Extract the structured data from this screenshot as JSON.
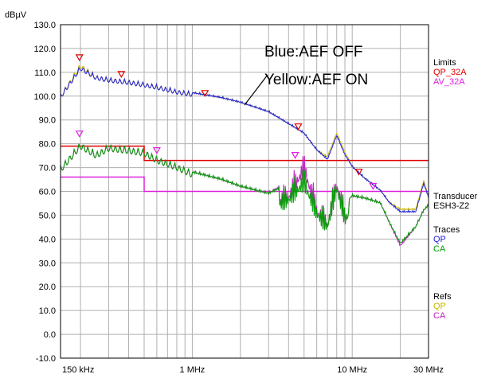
{
  "chart_data": {
    "type": "line",
    "ylabel": "dBµV",
    "ylim": [
      -10,
      130
    ],
    "y_ticks": [
      "130.0",
      "120.0",
      "110.0",
      "100.0",
      "90.0",
      "80.0",
      "70.0",
      "60.0",
      "50.0",
      "40.0",
      "30.0",
      "20.0",
      "10.0",
      "0.0",
      "-10.0"
    ],
    "x_scale": "log",
    "xlim_mhz": [
      0.15,
      30
    ],
    "x_ticks": [
      {
        "label": "150 kHz",
        "mhz": 0.15
      },
      {
        "label": "1 MHz",
        "mhz": 1
      },
      {
        "label": "10 MHz",
        "mhz": 10
      },
      {
        "label": "30 MHz",
        "mhz": 30
      }
    ],
    "grid": true,
    "annotations": [
      "Blue:AEF OFF",
      "Yellow:AEF ON"
    ],
    "legend": {
      "limits_title": "Limits",
      "limits": [
        {
          "name": "QP_32A",
          "color": "#e00000"
        },
        {
          "name": "AV_32A",
          "color": "#e020e0"
        }
      ],
      "transducer_title": "Transducer",
      "transducer": "ESH3-Z2",
      "traces_title": "Traces",
      "traces": [
        {
          "name": "QP",
          "color": "#2020e0"
        },
        {
          "name": "CA",
          "color": "#00a000"
        }
      ],
      "refs_title": "Refs",
      "refs": [
        {
          "name": "QP",
          "color": "#c8b400"
        },
        {
          "name": "CA",
          "color": "#c020c0"
        }
      ]
    },
    "limit_lines": [
      {
        "name": "QP_32A",
        "color": "#e00000",
        "points": [
          [
            0.15,
            79
          ],
          [
            0.5,
            79
          ],
          [
            0.5,
            73
          ],
          [
            30,
            73
          ]
        ]
      },
      {
        "name": "AV_32A",
        "color": "#e020e0",
        "points": [
          [
            0.15,
            66
          ],
          [
            0.5,
            66
          ],
          [
            0.5,
            60
          ],
          [
            30,
            60
          ]
        ]
      }
    ],
    "series": [
      {
        "name": "QP",
        "color": "#2020e0",
        "envelope": [
          [
            0.15,
            100
          ],
          [
            0.2,
            112
          ],
          [
            0.25,
            108
          ],
          [
            0.3,
            107
          ],
          [
            0.4,
            106
          ],
          [
            0.5,
            105
          ],
          [
            0.6,
            104
          ],
          [
            0.8,
            102
          ],
          [
            1,
            101
          ],
          [
            1.5,
            99
          ],
          [
            2,
            97
          ],
          [
            3,
            93
          ],
          [
            4,
            88
          ],
          [
            5,
            84
          ],
          [
            6,
            77
          ],
          [
            7,
            73
          ],
          [
            8,
            83
          ],
          [
            9,
            75
          ],
          [
            10,
            70
          ],
          [
            12,
            65
          ],
          [
            15,
            60
          ],
          [
            17,
            55
          ],
          [
            20,
            51
          ],
          [
            25,
            51
          ],
          [
            28,
            63
          ],
          [
            30,
            57
          ]
        ]
      },
      {
        "name": "CA",
        "color": "#00a000",
        "envelope": [
          [
            0.15,
            70
          ],
          [
            0.2,
            80
          ],
          [
            0.25,
            76
          ],
          [
            0.3,
            79
          ],
          [
            0.4,
            78
          ],
          [
            0.5,
            77
          ],
          [
            0.6,
            74
          ],
          [
            0.8,
            71
          ],
          [
            1,
            68
          ],
          [
            1.5,
            65
          ],
          [
            2,
            62
          ],
          [
            3,
            59
          ],
          [
            4,
            63
          ],
          [
            5,
            70
          ],
          [
            6,
            57
          ],
          [
            7,
            52
          ],
          [
            8,
            68
          ],
          [
            9,
            55
          ],
          [
            10,
            58
          ],
          [
            12,
            57
          ],
          [
            15,
            55
          ],
          [
            17,
            47
          ],
          [
            20,
            38
          ],
          [
            25,
            45
          ],
          [
            28,
            52
          ],
          [
            30,
            54
          ]
        ]
      },
      {
        "name": "QP",
        "color": "#c8b400",
        "envelope": [
          [
            0.15,
            100
          ],
          [
            0.2,
            113
          ],
          [
            0.25,
            108
          ],
          [
            0.3,
            107
          ],
          [
            0.4,
            106
          ],
          [
            0.5,
            105
          ],
          [
            0.6,
            104
          ],
          [
            0.8,
            102
          ],
          [
            1,
            101
          ],
          [
            1.5,
            99
          ],
          [
            2,
            97
          ],
          [
            3,
            93
          ],
          [
            4,
            88
          ],
          [
            5,
            84
          ],
          [
            6,
            77
          ],
          [
            7,
            74
          ],
          [
            8,
            84
          ],
          [
            9,
            76
          ],
          [
            10,
            70
          ],
          [
            12,
            65
          ],
          [
            15,
            60
          ],
          [
            17,
            55
          ],
          [
            20,
            52
          ],
          [
            25,
            52
          ],
          [
            28,
            64
          ],
          [
            30,
            57
          ]
        ]
      },
      {
        "name": "CA",
        "color": "#c020c0",
        "envelope": [
          [
            0.15,
            70
          ],
          [
            0.2,
            80
          ],
          [
            0.25,
            76
          ],
          [
            0.3,
            79
          ],
          [
            0.4,
            78
          ],
          [
            0.5,
            77
          ],
          [
            0.6,
            74
          ],
          [
            0.8,
            71
          ],
          [
            1,
            68
          ],
          [
            1.5,
            65
          ],
          [
            2,
            62
          ],
          [
            3,
            59
          ],
          [
            4,
            64
          ],
          [
            5,
            76
          ],
          [
            6,
            58
          ],
          [
            7,
            52
          ],
          [
            8,
            69
          ],
          [
            9,
            55
          ],
          [
            10,
            58
          ],
          [
            12,
            57
          ],
          [
            15,
            55
          ],
          [
            17,
            47
          ],
          [
            20,
            37
          ],
          [
            25,
            45
          ],
          [
            28,
            52
          ],
          [
            30,
            54
          ]
        ]
      }
    ],
    "markers": [
      {
        "mhz": 0.197,
        "value": 116,
        "color": "#e00000"
      },
      {
        "mhz": 0.36,
        "value": 109,
        "color": "#e00000"
      },
      {
        "mhz": 1.2,
        "value": 101,
        "color": "#e00000"
      },
      {
        "mhz": 4.6,
        "value": 87,
        "color": "#e00000"
      },
      {
        "mhz": 11,
        "value": 68,
        "color": "#e00000"
      },
      {
        "mhz": 0.197,
        "value": 84,
        "color": "#e020e0"
      },
      {
        "mhz": 0.6,
        "value": 77,
        "color": "#e020e0"
      },
      {
        "mhz": 4.4,
        "value": 75,
        "color": "#e020e0"
      },
      {
        "mhz": 13.5,
        "value": 62,
        "color": "#e020e0"
      }
    ]
  }
}
